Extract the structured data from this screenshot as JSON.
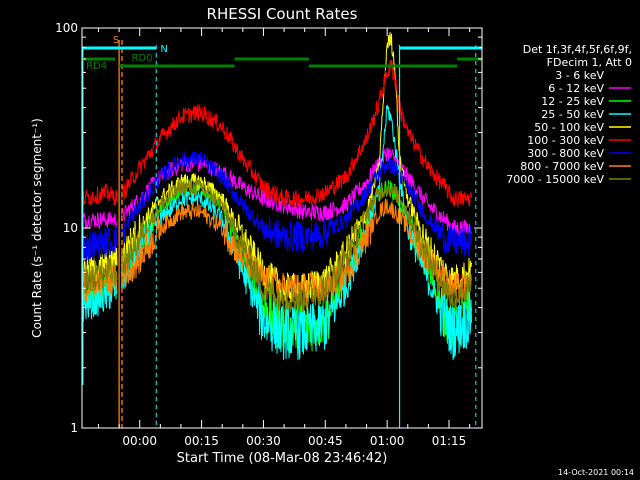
{
  "chart_data": {
    "type": "line",
    "title": "RHESSI Count Rates",
    "xlabel": "Start Time (08-Mar-08 23:46:42)",
    "ylabel": "Count Rate (s⁻¹ detector segment⁻¹)",
    "y_scale": "log",
    "ylim": [
      1,
      100
    ],
    "xlim_minutes": [
      -14,
      83
    ],
    "x_ticks": [
      {
        "m": 0,
        "label": "00:00"
      },
      {
        "m": 15,
        "label": "00:15"
      },
      {
        "m": 30,
        "label": "00:30"
      },
      {
        "m": 45,
        "label": "00:45"
      },
      {
        "m": 60,
        "label": "01:00"
      },
      {
        "m": 75,
        "label": "01:15"
      }
    ],
    "y_ticks": [
      {
        "v": 1,
        "label": "1"
      },
      {
        "v": 10,
        "label": "10"
      },
      {
        "v": 100,
        "label": "100"
      }
    ],
    "legend_header": [
      "Det 1f,3f,4f,5f,6f,9f,",
      "FDecim 1, Att 0"
    ],
    "series": [
      {
        "name": "3 - 6 keV",
        "color": "#000000",
        "x": [
          -14,
          -8,
          -5,
          0,
          5,
          10,
          15,
          20,
          25,
          30,
          35,
          40,
          45,
          50,
          55,
          58,
          60,
          62,
          65,
          70,
          74,
          76,
          80,
          82
        ],
        "y": [
          3.6,
          4.0,
          4.5,
          7.0,
          11,
          15,
          15,
          12,
          6,
          3,
          2.5,
          2.5,
          2.8,
          4.5,
          10,
          14,
          15,
          14,
          10,
          5,
          3.0,
          2.5,
          3.0,
          5.0
        ]
      },
      {
        "name": "6 - 12 keV",
        "color": "#ff00ff",
        "x": [
          -14,
          -8,
          -5,
          0,
          5,
          10,
          15,
          20,
          25,
          30,
          35,
          40,
          45,
          50,
          55,
          58,
          60,
          62,
          65,
          70,
          74,
          76,
          80,
          82
        ],
        "y": [
          11,
          11,
          11,
          14,
          18,
          21,
          21,
          19,
          16,
          14,
          13,
          12,
          12,
          13,
          17,
          21,
          24,
          22,
          18,
          13,
          11,
          10,
          10,
          11
        ]
      },
      {
        "name": "12 - 25 keV",
        "color": "#00ff00",
        "x": [
          -14,
          -8,
          -5,
          0,
          5,
          10,
          15,
          20,
          25,
          30,
          35,
          40,
          45,
          50,
          55,
          58,
          60,
          62,
          65,
          70,
          74,
          76,
          80,
          82
        ],
        "y": [
          4.5,
          5.0,
          5.5,
          8.5,
          12,
          16,
          16,
          13,
          7,
          4,
          3.2,
          3.2,
          3.5,
          5.5,
          11,
          15,
          16,
          15,
          11,
          6,
          3.8,
          3.2,
          3.8,
          6.0
        ]
      },
      {
        "name": "25 - 50 keV",
        "color": "#00ffff",
        "x": [
          -14,
          -8,
          -5,
          0,
          5,
          10,
          15,
          20,
          25,
          30,
          35,
          40,
          45,
          50,
          55,
          58,
          60,
          61,
          63,
          65,
          70,
          74,
          76,
          80,
          82
        ],
        "y": [
          4.0,
          4.5,
          5.0,
          8.0,
          11,
          14,
          14,
          11,
          6,
          3.5,
          3.0,
          3.0,
          3.3,
          5.0,
          10,
          15,
          40,
          35,
          18,
          10,
          5.5,
          3.5,
          3.0,
          3.5,
          5.5
        ]
      },
      {
        "name": "50 - 100 keV",
        "color": "#ffff00",
        "x": [
          -14,
          -8,
          -5,
          0,
          5,
          10,
          15,
          20,
          25,
          30,
          35,
          40,
          45,
          50,
          55,
          58,
          60,
          61,
          62,
          63,
          65,
          70,
          74,
          76,
          80,
          82
        ],
        "y": [
          6.0,
          6.5,
          7.0,
          10,
          14,
          17,
          17,
          14,
          9,
          6,
          5,
          5,
          5.5,
          7.5,
          12,
          20,
          85,
          88,
          60,
          22,
          14,
          8,
          6,
          5.5,
          6,
          7.5
        ]
      },
      {
        "name": "100 - 300 keV",
        "color": "#ff0000",
        "x": [
          -14,
          -8,
          -5,
          0,
          5,
          10,
          15,
          20,
          25,
          30,
          35,
          40,
          45,
          50,
          55,
          58,
          60,
          61,
          62,
          63,
          65,
          70,
          74,
          76,
          80,
          82
        ],
        "y": [
          14,
          15,
          14,
          20,
          28,
          36,
          38,
          32,
          22,
          16,
          14,
          14,
          15,
          18,
          28,
          42,
          60,
          65,
          55,
          40,
          30,
          20,
          16,
          14,
          14,
          17
        ]
      },
      {
        "name": "300 - 800 keV",
        "color": "#0000ff",
        "x": [
          -14,
          -8,
          -5,
          0,
          5,
          10,
          15,
          20,
          25,
          30,
          35,
          40,
          45,
          50,
          55,
          58,
          60,
          62,
          65,
          70,
          74,
          76,
          80,
          82
        ],
        "y": [
          8.0,
          8.5,
          9.0,
          13,
          18,
          22,
          22,
          18,
          13,
          10,
          9,
          9,
          9.5,
          11,
          15,
          19,
          21,
          20,
          16,
          11,
          9,
          8.5,
          8.5,
          10
        ]
      },
      {
        "name": "800 - 7000 keV",
        "color": "#ff8000",
        "x": [
          -14,
          -8,
          -5,
          0,
          5,
          10,
          15,
          20,
          25,
          30,
          35,
          40,
          45,
          50,
          55,
          58,
          60,
          62,
          65,
          70,
          74,
          76,
          80,
          82
        ],
        "y": [
          5.0,
          5.5,
          5.5,
          7.0,
          10,
          12,
          12,
          10,
          7,
          5.5,
          5,
          5,
          5,
          6,
          9,
          12,
          13,
          12,
          10,
          7,
          5.5,
          5,
          5,
          6
        ]
      },
      {
        "name": "7000 - 15000 keV",
        "color": "#808000",
        "x": [
          -14,
          -8,
          -5,
          0,
          5,
          10,
          15,
          20,
          25,
          30,
          35,
          40,
          45,
          50,
          55,
          58,
          60,
          62,
          65,
          70,
          74,
          76,
          80,
          82
        ],
        "y": [
          5.5,
          6.0,
          6.0,
          9,
          13,
          16,
          16,
          13,
          8,
          5,
          4.5,
          4.5,
          5,
          7,
          12,
          15,
          16,
          15,
          12,
          7,
          5,
          4.5,
          5,
          6.5
        ]
      }
    ],
    "flags": {
      "saa_label": "S",
      "night_label": "N",
      "rd0_label": "RD0",
      "rd4_label": "RD4"
    },
    "legend_placement": "right"
  },
  "footer_date": "14-Oct-2021 00:14"
}
